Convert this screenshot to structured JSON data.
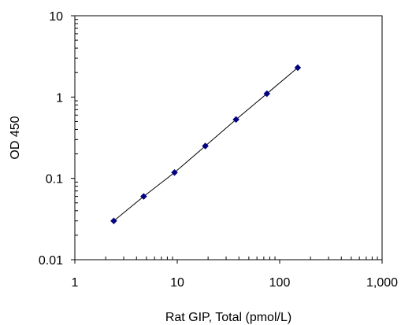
{
  "chart_data": {
    "type": "scatter",
    "xlabel": "Rat GIP, Total (pmol/L)",
    "ylabel": "OD 450",
    "x_scale": "log",
    "y_scale": "log",
    "xlim": [
      1,
      1000
    ],
    "ylim": [
      0.01,
      10
    ],
    "x_tick_labels": [
      "1",
      "10",
      "100",
      "1,000"
    ],
    "y_tick_labels": [
      "0.01",
      "0.1",
      "1",
      "10"
    ],
    "grid": false,
    "legend": "none",
    "trendline": true,
    "series": [
      {
        "x": [
          2.4,
          4.7,
          9.4,
          18.8,
          37.5,
          75,
          150
        ],
        "y": [
          0.03,
          0.06,
          0.118,
          0.25,
          0.53,
          1.1,
          2.3
        ],
        "color": "#000080"
      }
    ]
  }
}
